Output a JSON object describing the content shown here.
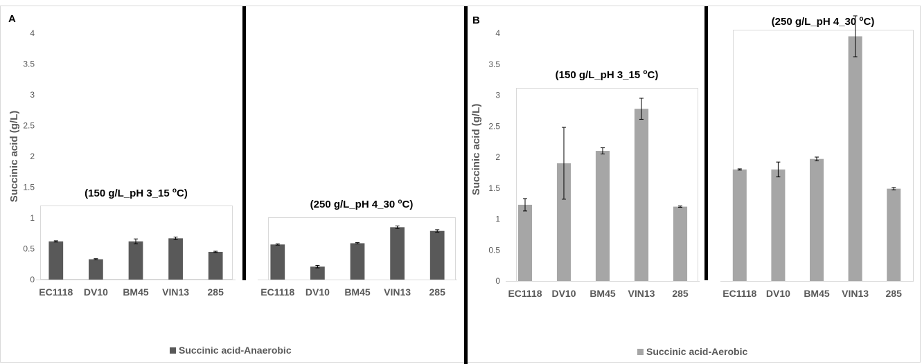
{
  "panel_a": {
    "letter": "A",
    "ylabel": "Succinic acid (g/L)",
    "legend": "Succinic acid-Anaerobic",
    "color": "#595959"
  },
  "panel_b": {
    "letter": "B",
    "ylabel": "Succinic acid (g/L)",
    "legend": "Succinic acid-Aerobic",
    "color": "#a6a6a6"
  },
  "chart_data": [
    {
      "type": "bar",
      "panel": "A",
      "title": "(150 g/L_pH 3_15 °C)",
      "ylabel": "Succinic acid (g/L)",
      "series_name": "Succinic acid-Anaerobic",
      "categories": [
        "EC1118",
        "DV10",
        "BM45",
        "VIN13",
        "285"
      ],
      "values": [
        0.62,
        0.33,
        0.62,
        0.67,
        0.45
      ],
      "errors": [
        0.01,
        0.01,
        0.04,
        0.02,
        0.01
      ],
      "ylim": [
        0,
        4
      ],
      "yticks": [
        "0",
        "0.5",
        "1",
        "1.5",
        "2",
        "2.5",
        "3",
        "3.5",
        "4"
      ],
      "color": "#595959"
    },
    {
      "type": "bar",
      "panel": "A",
      "title": "(250 g/L_pH 4_30 °C)",
      "series_name": "Succinic acid-Anaerobic",
      "categories": [
        "EC1118",
        "DV10",
        "BM45",
        "VIN13",
        "285"
      ],
      "values": [
        0.57,
        0.21,
        0.59,
        0.85,
        0.79
      ],
      "errors": [
        0.01,
        0.02,
        0.01,
        0.02,
        0.02
      ],
      "ylim": [
        0,
        4
      ],
      "color": "#595959"
    },
    {
      "type": "bar",
      "panel": "B",
      "title": "(150 g/L_pH 3_15 °C)",
      "ylabel": "Succinic acid (g/L)",
      "series_name": "Succinic acid-Aerobic",
      "categories": [
        "EC1118",
        "DV10",
        "BM45",
        "VIN13",
        "285"
      ],
      "values": [
        1.23,
        1.9,
        2.1,
        2.78,
        1.2
      ],
      "errors": [
        0.1,
        0.58,
        0.05,
        0.17,
        0.01
      ],
      "ylim": [
        0,
        4
      ],
      "yticks": [
        "0",
        "0.5",
        "1",
        "1.5",
        "2",
        "2.5",
        "3",
        "3.5",
        "4"
      ],
      "color": "#a6a6a6"
    },
    {
      "type": "bar",
      "panel": "B",
      "title": "(250 g/L_pH 4_30 °C)",
      "series_name": "Succinic acid-Aerobic",
      "categories": [
        "EC1118",
        "DV10",
        "BM45",
        "VIN13",
        "285"
      ],
      "values": [
        1.8,
        1.8,
        1.97,
        3.95,
        1.49
      ],
      "errors": [
        0.01,
        0.12,
        0.03,
        0.33,
        0.02
      ],
      "ylim": [
        0,
        4
      ],
      "color": "#a6a6a6"
    }
  ]
}
